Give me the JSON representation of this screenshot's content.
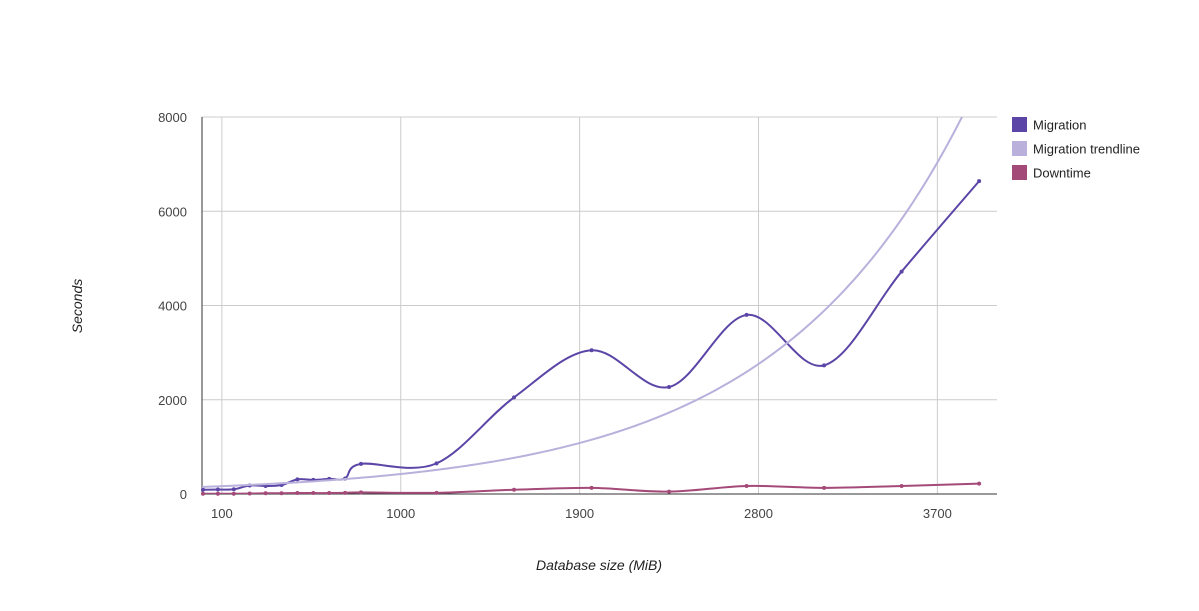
{
  "chart_data": {
    "type": "line",
    "xlabel": "Database size (MiB)",
    "ylabel": "Seconds",
    "xlim": [
      0,
      4000
    ],
    "ylim": [
      0,
      8000
    ],
    "x_ticks": [
      100,
      1000,
      1900,
      2800,
      3700
    ],
    "y_ticks": [
      0,
      2000,
      4000,
      6000,
      8000
    ],
    "grid": true,
    "legend_position": "right",
    "series": [
      {
        "name": "Migration",
        "color": "#5b45a6",
        "smooth": true,
        "points": [
          [
            5,
            90
          ],
          [
            80,
            95
          ],
          [
            160,
            100
          ],
          [
            240,
            180
          ],
          [
            320,
            170
          ],
          [
            400,
            190
          ],
          [
            480,
            310
          ],
          [
            560,
            300
          ],
          [
            640,
            320
          ],
          [
            720,
            330
          ],
          [
            800,
            640
          ],
          [
            1180,
            650
          ],
          [
            1570,
            2050
          ],
          [
            1960,
            3050
          ],
          [
            2350,
            2270
          ],
          [
            2740,
            3800
          ],
          [
            3130,
            2730
          ],
          [
            3520,
            4720
          ],
          [
            3910,
            6640
          ]
        ]
      },
      {
        "name": "Migration trendline",
        "color": "#b9b0dc",
        "trend": "exponential",
        "a": 150,
        "b": 0.00104
      },
      {
        "name": "Downtime",
        "color": "#a44a79",
        "smooth": true,
        "points": [
          [
            5,
            5
          ],
          [
            80,
            5
          ],
          [
            160,
            5
          ],
          [
            240,
            10
          ],
          [
            320,
            15
          ],
          [
            400,
            15
          ],
          [
            480,
            20
          ],
          [
            560,
            20
          ],
          [
            640,
            20
          ],
          [
            720,
            25
          ],
          [
            800,
            35
          ],
          [
            1180,
            25
          ],
          [
            1570,
            90
          ],
          [
            1960,
            130
          ],
          [
            2350,
            50
          ],
          [
            2740,
            170
          ],
          [
            3130,
            130
          ],
          [
            3520,
            170
          ],
          [
            3910,
            220
          ]
        ]
      }
    ]
  }
}
